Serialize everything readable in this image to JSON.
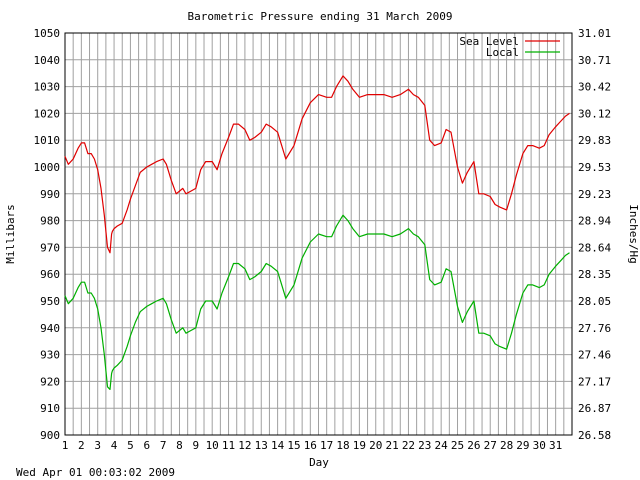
{
  "chart_data": {
    "type": "line",
    "title": "Barometric Pressure ending 31 March 2009",
    "xlabel": "Day",
    "ylabel": "Millibars",
    "y2label": "Inches/Hg",
    "footer": "Wed Apr 01 00:03:02 2009",
    "xlim": [
      1,
      32
    ],
    "ylim": [
      900,
      1050
    ],
    "y2lim": [
      26.58,
      31.01
    ],
    "x_ticks": [
      "1",
      "2",
      "3",
      "4",
      "5",
      "6",
      "7",
      "8",
      "9",
      "10",
      "11",
      "12",
      "13",
      "14",
      "15",
      "16",
      "17",
      "18",
      "19",
      "20",
      "21",
      "22",
      "23",
      "24",
      "25",
      "26",
      "27",
      "28",
      "29",
      "30",
      "31"
    ],
    "y_ticks": [
      "900",
      "910",
      "920",
      "930",
      "940",
      "950",
      "960",
      "970",
      "980",
      "990",
      "1000",
      "1010",
      "1020",
      "1030",
      "1040",
      "1050"
    ],
    "y2_ticks": [
      "26.58",
      "26.87",
      "27.17",
      "27.46",
      "27.76",
      "28.05",
      "28.35",
      "28.64",
      "28.94",
      "29.23",
      "29.53",
      "29.83",
      "30.12",
      "30.42",
      "30.71",
      "31.01"
    ],
    "grid": true,
    "legend_position": "top-right",
    "series": [
      {
        "name": "Sea Level",
        "color": "#e00000",
        "x": [
          1.0,
          1.2,
          1.5,
          1.8,
          2.0,
          2.2,
          2.4,
          2.6,
          2.8,
          3.0,
          3.2,
          3.4,
          3.6,
          3.75,
          3.85,
          3.9,
          4.0,
          4.2,
          4.5,
          4.8,
          5.0,
          5.3,
          5.6,
          6.0,
          6.3,
          6.6,
          7.0,
          7.2,
          7.5,
          7.8,
          8.0,
          8.2,
          8.4,
          8.7,
          9.0,
          9.3,
          9.6,
          10.0,
          10.3,
          10.6,
          11.0,
          11.3,
          11.6,
          12.0,
          12.3,
          12.6,
          13.0,
          13.3,
          13.6,
          14.0,
          14.2,
          14.5,
          15.0,
          15.5,
          16.0,
          16.5,
          17.0,
          17.3,
          17.6,
          18.0,
          18.3,
          18.6,
          19.0,
          19.5,
          20.0,
          20.5,
          21.0,
          21.5,
          22.0,
          22.3,
          22.6,
          23.0,
          23.3,
          23.6,
          24.0,
          24.3,
          24.6,
          25.0,
          25.3,
          25.6,
          26.0,
          26.3,
          26.6,
          27.0,
          27.3,
          27.6,
          28.0,
          28.3,
          28.6,
          29.0,
          29.3,
          29.6,
          30.0,
          30.3,
          30.6,
          31.0,
          31.3,
          31.6,
          31.85
        ],
        "values": [
          1004,
          1001,
          1003,
          1007,
          1009,
          1009,
          1005,
          1005,
          1003,
          999,
          992,
          982,
          970,
          968,
          975,
          976,
          977,
          978,
          979,
          984,
          988,
          993,
          998,
          1000,
          1001,
          1002,
          1003,
          1001,
          995,
          990,
          991,
          992,
          990,
          991,
          992,
          999,
          1002,
          1002,
          999,
          1005,
          1011,
          1016,
          1016,
          1014,
          1010,
          1011,
          1013,
          1016,
          1015,
          1013,
          1009,
          1003,
          1008,
          1018,
          1024,
          1027,
          1026,
          1026,
          1030,
          1034,
          1032,
          1029,
          1026,
          1027,
          1027,
          1027,
          1026,
          1027,
          1029,
          1027,
          1026,
          1023,
          1010,
          1008,
          1009,
          1014,
          1013,
          1000,
          994,
          998,
          1002,
          990,
          990,
          989,
          986,
          985,
          984,
          990,
          997,
          1005,
          1008,
          1008,
          1007,
          1008,
          1012,
          1015,
          1017,
          1019,
          1020
        ]
      },
      {
        "name": "Local",
        "color": "#00b000",
        "x": [
          1.0,
          1.2,
          1.5,
          1.8,
          2.0,
          2.2,
          2.4,
          2.6,
          2.8,
          3.0,
          3.2,
          3.4,
          3.6,
          3.75,
          3.85,
          3.9,
          4.0,
          4.2,
          4.5,
          4.8,
          5.0,
          5.3,
          5.6,
          6.0,
          6.3,
          6.6,
          7.0,
          7.2,
          7.5,
          7.8,
          8.0,
          8.2,
          8.4,
          8.7,
          9.0,
          9.3,
          9.6,
          10.0,
          10.3,
          10.6,
          11.0,
          11.3,
          11.6,
          12.0,
          12.3,
          12.6,
          13.0,
          13.3,
          13.6,
          14.0,
          14.2,
          14.5,
          15.0,
          15.5,
          16.0,
          16.5,
          17.0,
          17.3,
          17.6,
          18.0,
          18.3,
          18.6,
          19.0,
          19.5,
          20.0,
          20.5,
          21.0,
          21.5,
          22.0,
          22.3,
          22.6,
          23.0,
          23.3,
          23.6,
          24.0,
          24.3,
          24.6,
          25.0,
          25.3,
          25.6,
          26.0,
          26.3,
          26.6,
          27.0,
          27.3,
          27.6,
          28.0,
          28.3,
          28.6,
          29.0,
          29.3,
          29.6,
          30.0,
          30.3,
          30.6,
          31.0,
          31.3,
          31.6,
          31.85
        ],
        "values": [
          952,
          949,
          951,
          955,
          957,
          957,
          953,
          953,
          951,
          947,
          940,
          930,
          918,
          917,
          923,
          924,
          925,
          926,
          928,
          933,
          937,
          942,
          946,
          948,
          949,
          950,
          951,
          949,
          943,
          938,
          939,
          940,
          938,
          939,
          940,
          947,
          950,
          950,
          947,
          953,
          959,
          964,
          964,
          962,
          958,
          959,
          961,
          964,
          963,
          961,
          957,
          951,
          956,
          966,
          972,
          975,
          974,
          974,
          978,
          982,
          980,
          977,
          974,
          975,
          975,
          975,
          974,
          975,
          977,
          975,
          974,
          971,
          958,
          956,
          957,
          962,
          961,
          948,
          942,
          946,
          950,
          938,
          938,
          937,
          934,
          933,
          932,
          938,
          945,
          953,
          956,
          956,
          955,
          956,
          960,
          963,
          965,
          967,
          968
        ]
      }
    ]
  }
}
